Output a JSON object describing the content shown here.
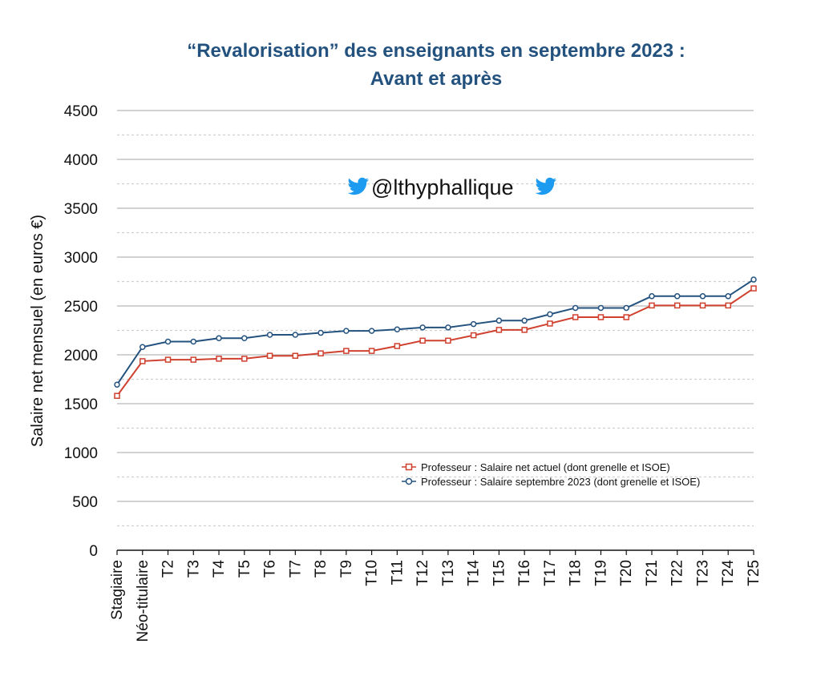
{
  "chart_data": {
    "type": "line",
    "title_line1": "“Revalorisation” des enseignants en septembre 2023 :",
    "title_line2": "Avant et après",
    "ylabel": "Salaire net mensuel (en euros €)",
    "xlabel": "",
    "ylim": [
      0,
      4500
    ],
    "yticks": [
      0,
      500,
      1000,
      1500,
      2000,
      2500,
      3000,
      3500,
      4000,
      4500
    ],
    "grid": "major solid, minor dashed",
    "legend_position": "lower-right",
    "categories": [
      "Stagiaire",
      "Néo-titulaire",
      "T2",
      "T3",
      "T4",
      "T5",
      "T6",
      "T7",
      "T8",
      "T9",
      "T10",
      "T11",
      "T12",
      "T13",
      "T14",
      "T15",
      "T16",
      "T17",
      "T18",
      "T19",
      "T20",
      "T21",
      "T22",
      "T23",
      "T24",
      "T25"
    ],
    "series": [
      {
        "name": "Professeur : Salaire net actuel (dont grenelle et ISOE)",
        "color": "#d0402f",
        "marker": "square",
        "values": [
          1580,
          1935,
          1950,
          1950,
          1960,
          1960,
          1990,
          1990,
          2015,
          2040,
          2040,
          2090,
          2145,
          2145,
          2200,
          2255,
          2255,
          2320,
          2385,
          2385,
          2385,
          2505,
          2505,
          2505,
          2505,
          2680
        ]
      },
      {
        "name": "Professeur : Salaire septembre 2023 (dont grenelle et ISOE)",
        "color": "#24527f",
        "marker": "circle",
        "values": [
          1695,
          2080,
          2135,
          2135,
          2170,
          2170,
          2205,
          2205,
          2225,
          2245,
          2245,
          2260,
          2280,
          2280,
          2315,
          2350,
          2350,
          2415,
          2480,
          2480,
          2480,
          2600,
          2600,
          2600,
          2600,
          2770
        ]
      }
    ],
    "watermark": {
      "text": "@lthyphallique",
      "icon": "twitter-bird-icon",
      "icon_color": "#1d9bf0"
    }
  }
}
